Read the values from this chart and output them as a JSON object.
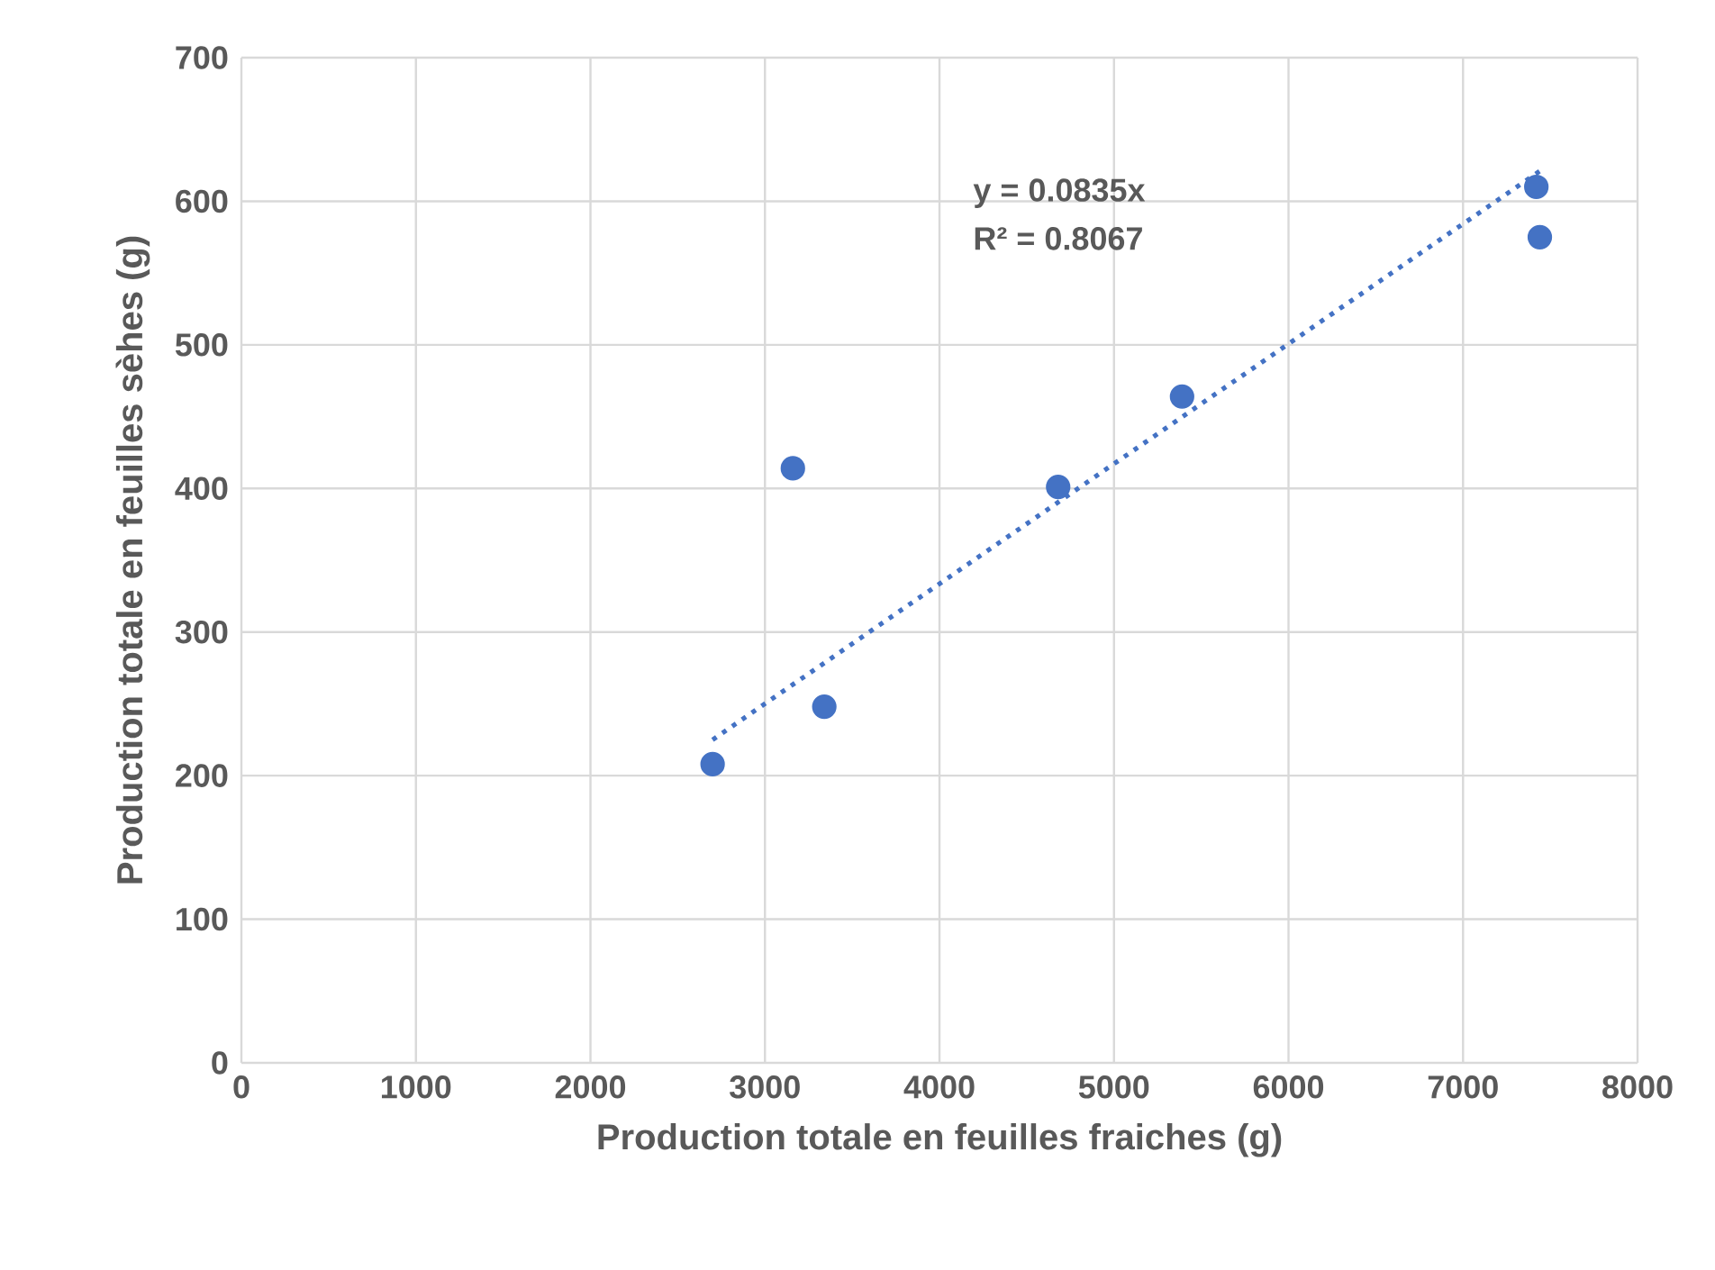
{
  "chart_data": {
    "type": "scatter",
    "xlabel": "Production totale en feuilles fraiches (g)",
    "ylabel": "Production totale en feuilles sèhes (g)",
    "annotations": [
      "y = 0.0835x",
      "R² = 0.8067"
    ],
    "series": [
      {
        "color": "#4472c4",
        "marker": "circle",
        "x": [
          2700,
          3160,
          3340,
          4680,
          5390,
          7420,
          7440
        ],
        "values": [
          208,
          414,
          248,
          401,
          464,
          610,
          575
        ]
      },
      {
        "type": "line",
        "color": "#4472c4",
        "marker": "none",
        "line_style": "dotted",
        "x": [
          2700,
          7440
        ],
        "values": [
          225,
          621
        ]
      }
    ],
    "xlim": [
      0,
      8000
    ],
    "ylim": [
      0,
      700
    ],
    "xticks": [
      0,
      1000,
      2000,
      3000,
      4000,
      5000,
      6000,
      7000,
      8000
    ],
    "yticks": [
      0,
      100,
      200,
      300,
      400,
      500,
      600,
      700
    ],
    "grid": true
  }
}
